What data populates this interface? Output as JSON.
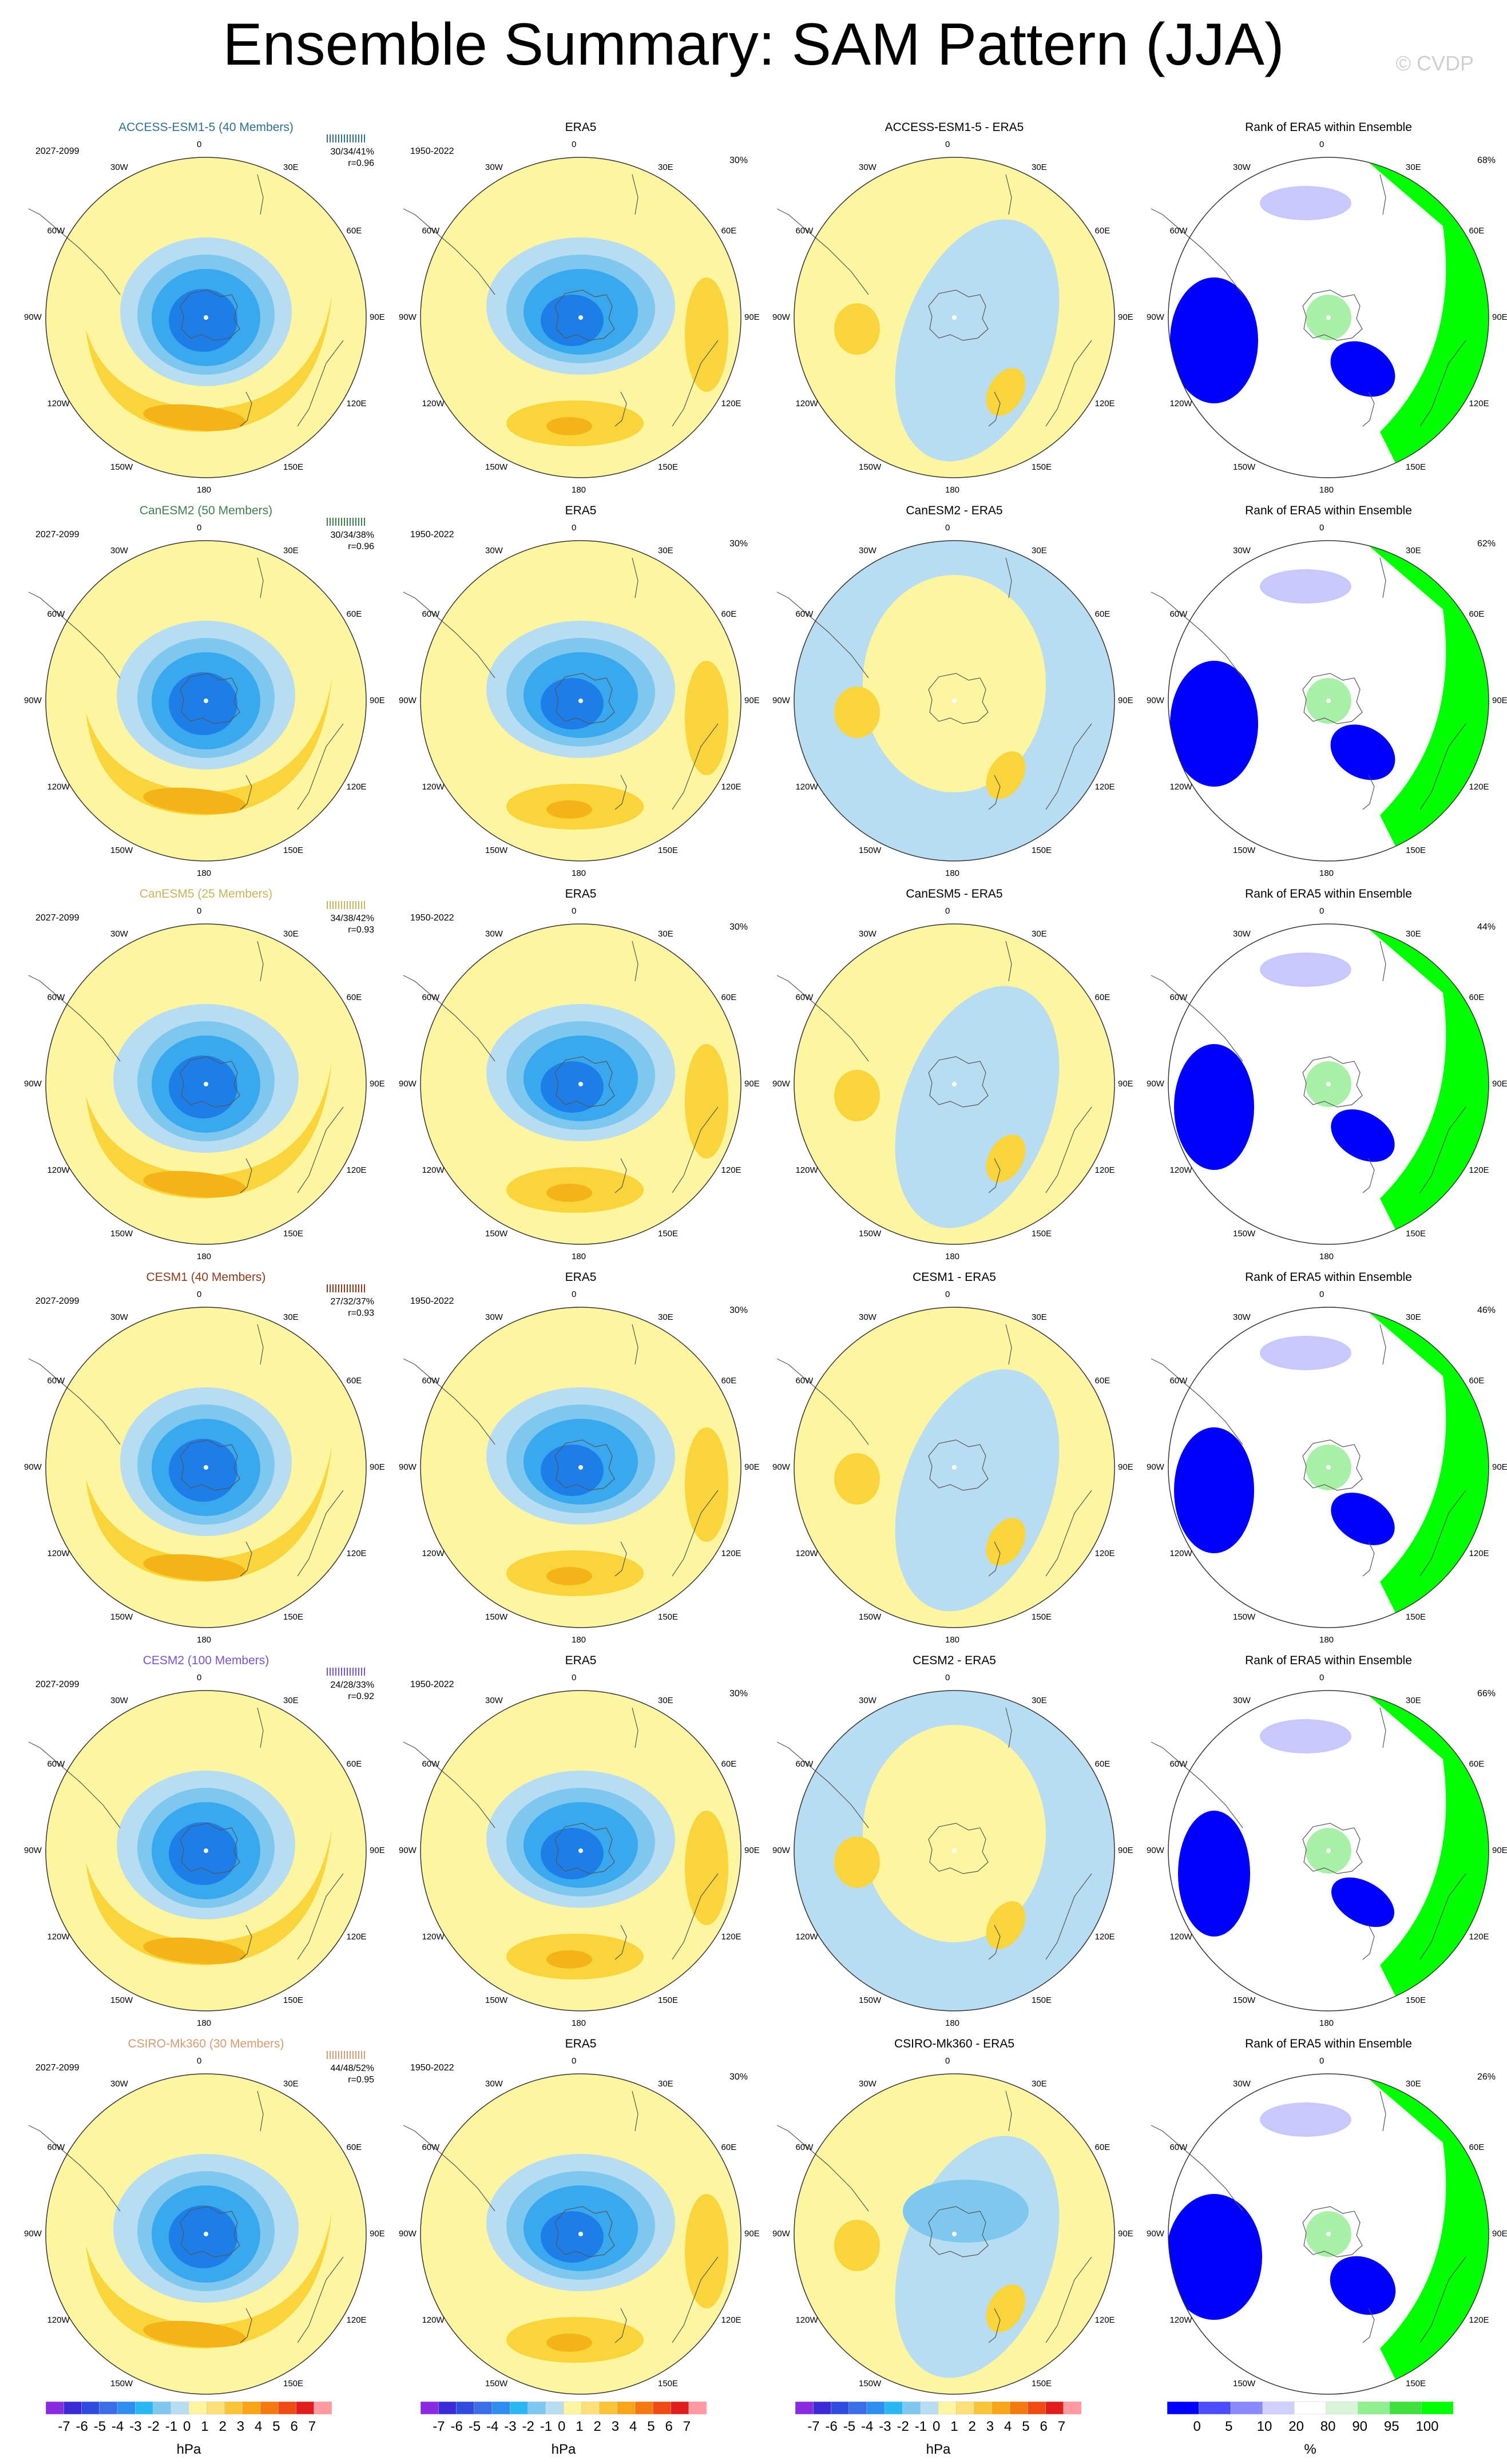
{
  "title": "Ensemble Summary: SAM Pattern (JJA)",
  "watermark": "© CVDP",
  "lon_labels": [
    "0",
    "30E",
    "60E",
    "90E",
    "120E",
    "150E",
    "180",
    "150W",
    "120W",
    "90W",
    "60W",
    "30W"
  ],
  "rows": [
    {
      "model": "ACCESS-ESM1-5 (40 Members)",
      "model_color": "#2f6f8f",
      "period": "2027-2099",
      "obs_period": "1950-2022",
      "stats": "30/34/41%",
      "r": "r=0.96",
      "diff_title": "ACCESS-ESM1-5 - ERA5",
      "rank_pct": "68%"
    },
    {
      "model": "CanESM2 (50 Members)",
      "model_color": "#3f7f4f",
      "period": "2027-2099",
      "obs_period": "1950-2022",
      "stats": "30/34/38%",
      "r": "r=0.96",
      "diff_title": "CanESM2 - ERA5",
      "rank_pct": "62%"
    },
    {
      "model": "CanESM5 (25 Members)",
      "model_color": "#c8b45a",
      "period": "2027-2099",
      "obs_period": "1950-2022",
      "stats": "34/38/42%",
      "r": "r=0.93",
      "diff_title": "CanESM5 - ERA5",
      "rank_pct": "44%"
    },
    {
      "model": "CESM1 (40 Members)",
      "model_color": "#8b3a1a",
      "period": "2027-2099",
      "obs_period": "1950-2022",
      "stats": "27/32/37%",
      "r": "r=0.93",
      "diff_title": "CESM1 - ERA5",
      "rank_pct": "46%"
    },
    {
      "model": "CESM2 (100 Members)",
      "model_color": "#7a52d0",
      "period": "2027-2099",
      "obs_period": "1950-2022",
      "stats": "24/28/33%",
      "r": "r=0.92",
      "diff_title": "CESM2 - ERA5",
      "rank_pct": "66%"
    },
    {
      "model": "CSIRO-Mk360 (30 Members)",
      "model_color": "#d59a72",
      "period": "2027-2099",
      "obs_period": "1950-2022",
      "stats": "44/48/52%",
      "r": "r=0.95",
      "diff_title": "CSIRO-Mk360 - ERA5",
      "rank_pct": "26%"
    }
  ],
  "obs_title": "ERA5",
  "rank_title": "Rank of ERA5 within Ensemble",
  "colorbars": {
    "hpa_labels": [
      "-7",
      "-6",
      "-5",
      "-4",
      "-3",
      "-2",
      "-1",
      "0",
      "1",
      "2",
      "3",
      "4",
      "5",
      "6",
      "7"
    ],
    "hpa_colors": [
      "#8a2be2",
      "#3b2bd6",
      "#2f4be0",
      "#3c6de8",
      "#2e8df0",
      "#28b6f5",
      "#7ec8f0",
      "#b8ddf2",
      "#fdf5a0",
      "#fbe07a",
      "#f9c43a",
      "#f7a417",
      "#f47a10",
      "#ee4a12",
      "#e01c1c",
      "#ff9aa0"
    ],
    "hpa_unit": "hPa",
    "pct_labels": [
      "0",
      "5",
      "10",
      "20",
      "80",
      "90",
      "95",
      "100"
    ],
    "pct_colors": [
      "#0000ff",
      "#4c4cff",
      "#8a8aff",
      "#d0d0ff",
      "#ffffff",
      "#d8f5d8",
      "#90ee90",
      "#3ee03e",
      "#00ff00"
    ],
    "pct_unit": "%"
  },
  "field_colors": {
    "yellow": "#fdf5a0",
    "orange1": "#f9d43a",
    "orange2": "#f4b417",
    "lightblue": "#b8ddf2",
    "blue1": "#7ec8f0",
    "blue2": "#3aa8ee",
    "blue3": "#1e7ee8",
    "blue4": "#2f4be0",
    "green": "#00ff00",
    "rankblue": "#0000ff",
    "ranklight": "#c8c8ff"
  }
}
